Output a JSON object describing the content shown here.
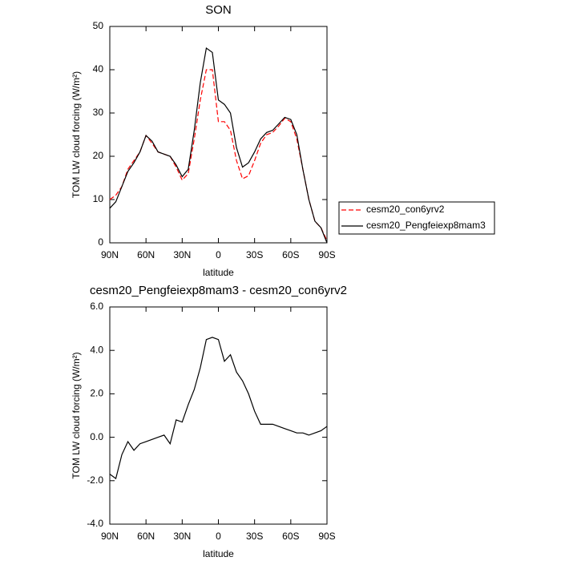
{
  "chart_data": [
    {
      "type": "line",
      "title": "SON",
      "x_label": "latitude",
      "y_label": "TOM LW cloud forcing (W/m²)",
      "x": [
        90,
        85,
        80,
        75,
        70,
        65,
        60,
        55,
        50,
        45,
        40,
        35,
        30,
        25,
        20,
        15,
        10,
        5,
        0,
        -5,
        -10,
        -15,
        -20,
        -25,
        -30,
        -35,
        -40,
        -45,
        -50,
        -55,
        -60,
        -65,
        -70,
        -75,
        -80,
        -85,
        -90
      ],
      "xlim": [
        90,
        -90
      ],
      "xticks": [
        {
          "value": 90,
          "label": "90N"
        },
        {
          "value": 60,
          "label": "60N"
        },
        {
          "value": 30,
          "label": "30N"
        },
        0,
        {
          "value": -30,
          "label": "30S"
        },
        {
          "value": -60,
          "label": "60S"
        },
        {
          "value": -90,
          "label": "90S"
        }
      ],
      "ylim": [
        0,
        50
      ],
      "yticks": [
        0,
        10,
        20,
        30,
        40,
        50
      ],
      "legend": "outside-right",
      "series": [
        {
          "name": "cesm20_con6yrv2",
          "color": "#ff0000",
          "line_style": "dashed",
          "values": [
            10,
            11,
            13,
            17,
            19,
            21,
            24.8,
            23,
            21,
            20.5,
            20,
            17.5,
            14.5,
            16,
            24,
            33,
            40,
            40,
            28,
            28,
            26,
            19,
            14.8,
            15.5,
            19,
            23,
            25,
            25.5,
            27,
            28.8,
            28,
            24,
            17,
            10,
            5,
            3.5,
            0.5
          ]
        },
        {
          "name": "cesm20_Pengfeiexp8mam3",
          "color": "#000000",
          "line_style": "solid",
          "values": [
            8,
            9.5,
            13,
            16.5,
            18.5,
            21,
            24.8,
            23.5,
            21,
            20.5,
            20,
            18,
            15.3,
            17,
            26,
            37,
            45,
            44,
            33,
            32,
            30,
            22,
            17.5,
            18.5,
            21,
            24,
            25.5,
            26,
            27.5,
            29,
            28.5,
            25,
            17,
            10,
            5,
            3.5,
            0
          ]
        }
      ]
    },
    {
      "type": "line",
      "title": "cesm20_Pengfeiexp8mam3 - cesm20_con6yrv2",
      "x_label": "latitude",
      "y_label": "TOM LW cloud forcing (W/m²)",
      "x": [
        90,
        85,
        80,
        75,
        70,
        65,
        60,
        55,
        50,
        45,
        40,
        35,
        30,
        25,
        20,
        15,
        10,
        5,
        0,
        -5,
        -10,
        -15,
        -20,
        -25,
        -30,
        -35,
        -40,
        -45,
        -50,
        -55,
        -60,
        -65,
        -70,
        -75,
        -80,
        -85,
        -90
      ],
      "xlim": [
        90,
        -90
      ],
      "xticks": [
        {
          "value": 90,
          "label": "90N"
        },
        {
          "value": 60,
          "label": "60N"
        },
        {
          "value": 30,
          "label": "30N"
        },
        0,
        {
          "value": -30,
          "label": "30S"
        },
        {
          "value": -60,
          "label": "60S"
        },
        {
          "value": -90,
          "label": "90S"
        }
      ],
      "ylim": [
        -4,
        6
      ],
      "yticks": [
        {
          "value": -4,
          "label": "-4.0"
        },
        {
          "value": -2,
          "label": "-2.0"
        },
        {
          "value": 0,
          "label": "0.0"
        },
        {
          "value": 2,
          "label": "2.0"
        },
        {
          "value": 4,
          "label": "4.0"
        },
        {
          "value": 6,
          "label": "6.0"
        }
      ],
      "color": "#000000",
      "values": [
        -1.7,
        -1.9,
        -0.8,
        -0.2,
        -0.6,
        -0.3,
        -0.2,
        -0.1,
        0,
        0.1,
        -0.3,
        0.8,
        0.7,
        1.5,
        2.2,
        3.2,
        4.5,
        4.6,
        4.5,
        3.5,
        3.8,
        3,
        2.6,
        2,
        1.2,
        0.6,
        0.6,
        0.6,
        0.5,
        0.4,
        0.3,
        0.2,
        0.2,
        0.1,
        0.2,
        0.3,
        0.5
      ]
    }
  ]
}
